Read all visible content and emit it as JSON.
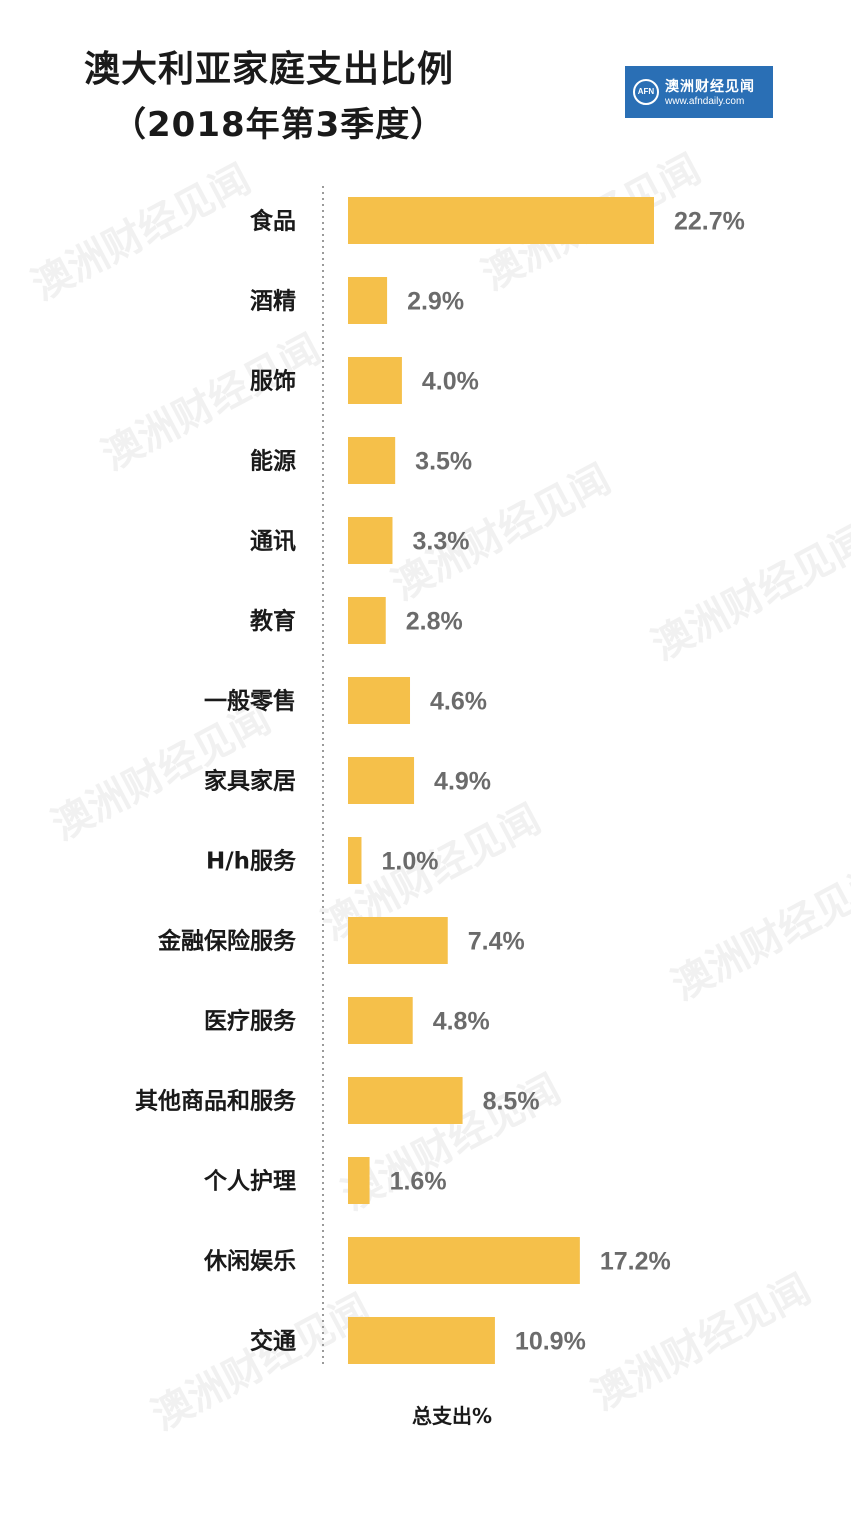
{
  "title": "澳大利亚家庭支出比例",
  "subtitle": "（2018年第3季度）",
  "logo": {
    "mark": "AFN",
    "name": "澳洲财经见闻",
    "url": "www.afndaily.com"
  },
  "watermark": "澳洲财经见闻",
  "colors": {
    "bar": "#f5c04a",
    "value_text": "#6b6b6b",
    "axis": "#9a9a9a",
    "logo_bg": "#2a6fb5"
  },
  "chart_data": {
    "type": "bar",
    "orientation": "horizontal",
    "categories": [
      "食品",
      "酒精",
      "服饰",
      "能源",
      "通讯",
      "教育",
      "一般零售",
      "家具家居",
      "H/h服务",
      "金融保险服务",
      "医疗服务",
      "其他商品和服务",
      "个人护理",
      "休闲娱乐",
      "交通"
    ],
    "values": [
      22.7,
      2.9,
      4.0,
      3.5,
      3.3,
      2.8,
      4.6,
      4.9,
      1.0,
      7.4,
      4.8,
      8.5,
      1.6,
      17.2,
      10.9
    ],
    "value_labels": [
      "22.7%",
      "2.9%",
      "4.0%",
      "3.5%",
      "3.3%",
      "2.8%",
      "4.6%",
      "4.9%",
      "1.0%",
      "7.4%",
      "4.8%",
      "8.5%",
      "1.6%",
      "17.2%",
      "10.9%"
    ],
    "title": "澳大利亚家庭支出比例",
    "subtitle": "（2018年第3季度）",
    "xlabel": "总支出%",
    "xlim": [
      0,
      22.7
    ],
    "grid": false
  }
}
